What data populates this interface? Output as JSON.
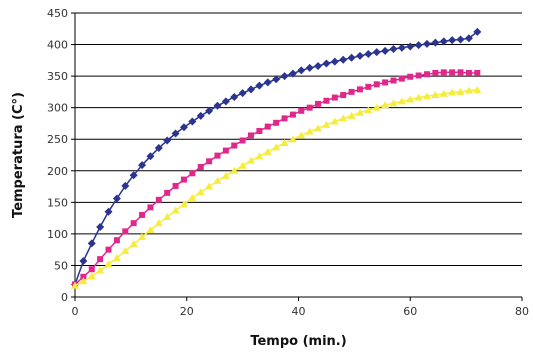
{
  "chart_data": {
    "type": "scatter",
    "title": "",
    "xlabel": "Tempo (min.)",
    "ylabel": "Temperatura (C°)",
    "xlim": [
      0,
      80
    ],
    "ylim": [
      0,
      450
    ],
    "x_ticks": [
      0,
      20,
      40,
      60,
      80
    ],
    "y_ticks": [
      0,
      50,
      100,
      150,
      200,
      250,
      300,
      350,
      400,
      450
    ],
    "grid": "horizontal",
    "legend": "none",
    "series": [
      {
        "color": "#2b3590",
        "marker": "diamond",
        "x": [
          0,
          1.5,
          3,
          4.5,
          6,
          7.5,
          9,
          10.5,
          12,
          13.5,
          15,
          16.5,
          18,
          19.5,
          21,
          22.5,
          24,
          25.5,
          27,
          28.5,
          30,
          31.5,
          33,
          34.5,
          36,
          37.5,
          39,
          40.5,
          42,
          43.5,
          45,
          46.5,
          48,
          49.5,
          51,
          52.5,
          54,
          55.5,
          57,
          58.5,
          60,
          61.5,
          63,
          64.5,
          66,
          67.5,
          69,
          70.5,
          72
        ],
        "y": [
          20,
          57,
          85,
          111,
          135,
          156,
          176,
          193,
          209,
          223,
          236,
          248,
          259,
          269,
          278,
          287,
          295,
          303,
          310,
          317,
          323,
          329,
          335,
          340,
          345,
          350,
          354,
          359,
          363,
          366,
          370,
          373,
          376,
          379,
          382,
          385,
          388,
          390,
          393,
          395,
          397,
          399,
          401,
          403,
          405,
          407,
          408,
          410,
          420
        ]
      },
      {
        "color": "#e0288c",
        "marker": "square",
        "x": [
          0,
          1.5,
          3,
          4.5,
          6,
          7.5,
          9,
          10.5,
          12,
          13.5,
          15,
          16.5,
          18,
          19.5,
          21,
          22.5,
          24,
          25.5,
          27,
          28.5,
          30,
          31.5,
          33,
          34.5,
          36,
          37.5,
          39,
          40.5,
          42,
          43.5,
          45,
          46.5,
          48,
          49.5,
          51,
          52.5,
          54,
          55.5,
          57,
          58.5,
          60,
          61.5,
          63,
          64.5,
          66,
          67.5,
          69,
          70.5,
          72
        ],
        "y": [
          20,
          32,
          44,
          60,
          75,
          90,
          104,
          117,
          130,
          142,
          154,
          165,
          176,
          186,
          196,
          206,
          215,
          224,
          232,
          240,
          248,
          256,
          263,
          270,
          276,
          283,
          289,
          295,
          300,
          306,
          311,
          316,
          320,
          325,
          329,
          333,
          337,
          340,
          343,
          346,
          349,
          351,
          353,
          355,
          356,
          356,
          356,
          355,
          355
        ]
      },
      {
        "color": "#f6ec3c",
        "marker": "triangle",
        "x": [
          0,
          1.5,
          3,
          4.5,
          6,
          7.5,
          9,
          10.5,
          12,
          13.5,
          15,
          16.5,
          18,
          19.5,
          21,
          22.5,
          24,
          25.5,
          27,
          28.5,
          30,
          31.5,
          33,
          34.5,
          36,
          37.5,
          39,
          40.5,
          42,
          43.5,
          45,
          46.5,
          48,
          49.5,
          51,
          52.5,
          54,
          55.5,
          57,
          58.5,
          60,
          61.5,
          63,
          64.5,
          66,
          67.5,
          69,
          70.5,
          72
        ],
        "y": [
          18,
          25,
          33,
          42,
          52,
          62,
          73,
          84,
          95,
          106,
          117,
          127,
          137,
          147,
          157,
          166,
          175,
          184,
          192,
          200,
          208,
          216,
          223,
          230,
          237,
          244,
          250,
          256,
          262,
          267,
          273,
          278,
          283,
          287,
          292,
          296,
          300,
          304,
          307,
          310,
          313,
          316,
          318,
          320,
          322,
          324,
          325,
          327,
          328
        ]
      }
    ]
  }
}
